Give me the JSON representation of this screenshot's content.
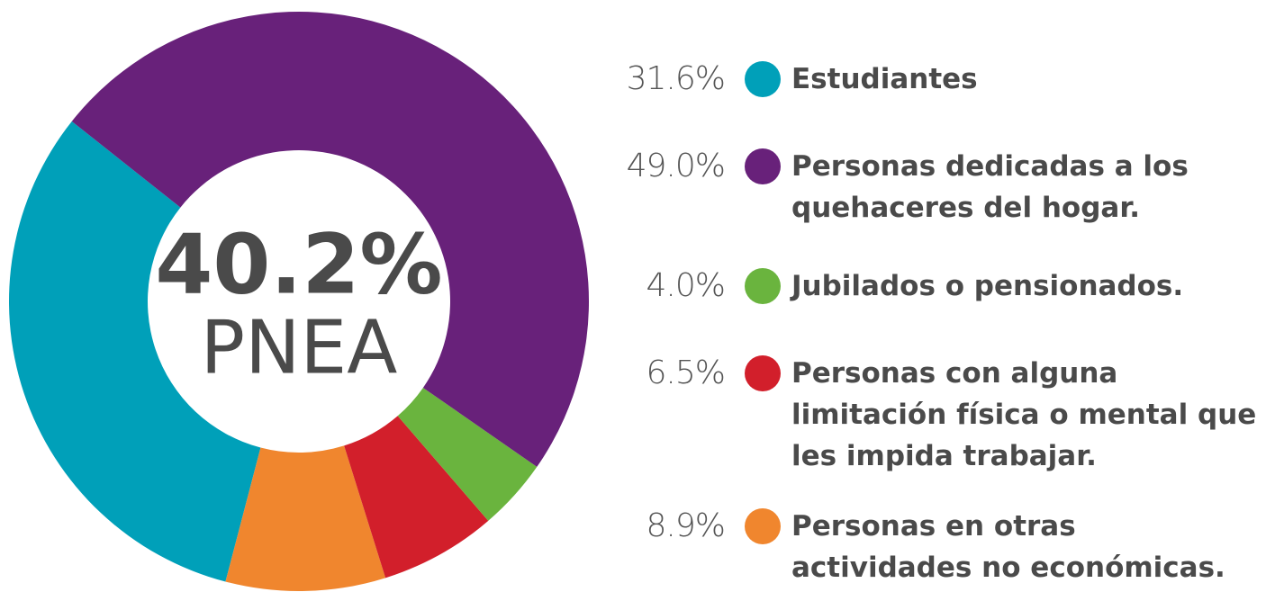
{
  "chart_data": {
    "type": "donut",
    "center_label": "40.2%",
    "center_sublabel": "PNEA",
    "categories": [
      "Estudiantes",
      "Personas dedicadas a los quehaceres del hogar.",
      "Jubilados o pensionados.",
      "Personas con alguna limitación física o mental que les impida trabajar.",
      "Personas en otras actividades no económicas."
    ],
    "values": [
      31.6,
      49.0,
      4.0,
      6.5,
      8.9
    ],
    "value_labels": [
      "31.6%",
      "49.0%",
      "4.0%",
      "6.5%",
      "8.9%"
    ],
    "colors": [
      "#00a0b9",
      "#68217a",
      "#6ab43e",
      "#d21f2b",
      "#f0862e"
    ]
  }
}
